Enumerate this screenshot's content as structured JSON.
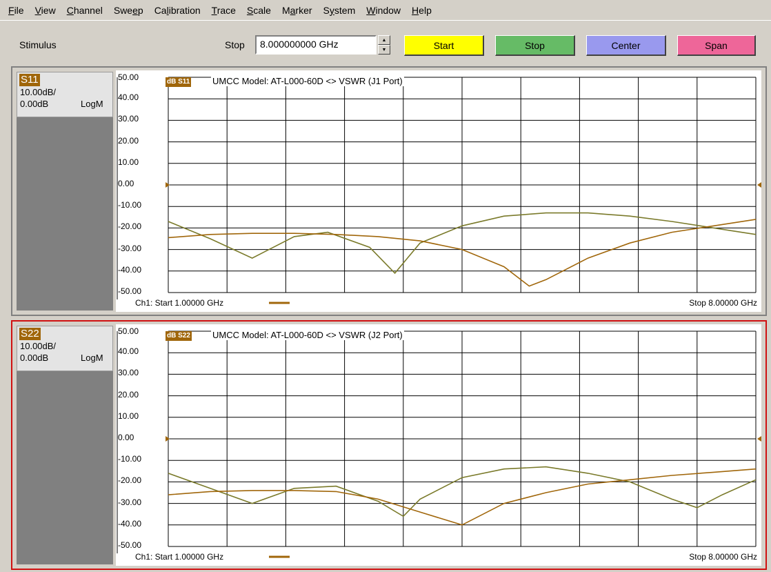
{
  "menu": [
    {
      "label": "File",
      "ul": "F",
      "rest": "ile"
    },
    {
      "label": "View",
      "ul": "V",
      "rest": "iew"
    },
    {
      "label": "Channel",
      "ul": "C",
      "rest": "hannel"
    },
    {
      "label": "Sweep",
      "pre": "Swe",
      "ul": "e",
      "rest": "p"
    },
    {
      "label": "Calibration",
      "pre": "Ca",
      "ul": "l",
      "rest": "ibration"
    },
    {
      "label": "Trace",
      "ul": "T",
      "rest": "race"
    },
    {
      "label": "Scale",
      "ul": "S",
      "rest": "cale"
    },
    {
      "label": "Marker",
      "pre": "M",
      "ul": "a",
      "rest": "rker"
    },
    {
      "label": "System",
      "pre": "S",
      "ul": "y",
      "rest": "stem"
    },
    {
      "label": "Window",
      "ul": "W",
      "rest": "indow"
    },
    {
      "label": "Help",
      "ul": "H",
      "rest": "elp"
    }
  ],
  "toolbar": {
    "stimulus_label": "Stimulus",
    "stop_label": "Stop",
    "stop_value": "8.000000000 GHz",
    "start_button": "Start",
    "stop_button": "Stop",
    "center_button": "Center",
    "span_button": "Span"
  },
  "colors": {
    "trace": "#a0660a",
    "trace_secondary": "#7a7a2a",
    "active_border": "#d01010"
  },
  "panes": [
    {
      "param": "S11",
      "scale": "10.00dB/",
      "ref": "0.00dB",
      "format": "LogM",
      "trace_tag": "dB S11",
      "title": "UMCC Model: AT-L000-60D <> VSWR (J1 Port)",
      "footer_start": "Ch1: Start  1.00000 GHz",
      "footer_stop": "Stop  8.00000 GHz",
      "active": false
    },
    {
      "param": "S22",
      "scale": "10.00dB/",
      "ref": "0.00dB",
      "format": "LogM",
      "trace_tag": "dB S22",
      "title": "UMCC Model: AT-L000-60D <> VSWR (J2 Port)",
      "footer_start": "Ch1: Start  1.00000 GHz",
      "footer_stop": "Stop  8.00000 GHz",
      "active": true
    }
  ],
  "chart_data": [
    {
      "type": "line",
      "title": "UMCC Model: AT-L000-60D <> VSWR (J1 Port)",
      "yticks": [
        "50.00",
        "40.00",
        "30.00",
        "20.00",
        "10.00",
        "0.00",
        "-10.00",
        "-20.00",
        "-30.00",
        "-40.00",
        "-50.00"
      ],
      "xlim": [
        1.0,
        8.0
      ],
      "ylim": [
        -50,
        50
      ],
      "grid": true,
      "series": [
        {
          "x": [
            1.0,
            1.5,
            2.0,
            2.5,
            2.9,
            3.4,
            3.7,
            4.0,
            4.5,
            5.0,
            5.5,
            6.0,
            6.5,
            7.0,
            7.5,
            8.0
          ],
          "y": [
            -17,
            -25,
            -34,
            -24,
            -22,
            -29,
            -41,
            -27,
            -19,
            -14.5,
            -13,
            -13,
            -14.5,
            -17,
            -20,
            -23
          ]
        },
        {
          "x": [
            1.0,
            1.5,
            2.0,
            2.5,
            3.0,
            3.5,
            4.0,
            4.5,
            5.0,
            5.3,
            5.5,
            6.0,
            6.5,
            7.0,
            7.5,
            8.0
          ],
          "y": [
            -24.5,
            -23,
            -22.5,
            -22.5,
            -23,
            -24,
            -26,
            -30,
            -38,
            -47,
            -44,
            -34,
            -27,
            -22,
            -19,
            -16
          ]
        }
      ]
    },
    {
      "type": "line",
      "title": "UMCC Model: AT-L000-60D <> VSWR (J2 Port)",
      "yticks": [
        "50.00",
        "40.00",
        "30.00",
        "20.00",
        "10.00",
        "0.00",
        "-10.00",
        "-20.00",
        "-30.00",
        "-40.00",
        "-50.00"
      ],
      "xlim": [
        1.0,
        8.0
      ],
      "ylim": [
        -50,
        50
      ],
      "grid": true,
      "series": [
        {
          "x": [
            1.0,
            1.5,
            2.0,
            2.5,
            3.0,
            3.5,
            3.8,
            4.0,
            4.5,
            5.0,
            5.5,
            6.0,
            6.5,
            7.0,
            7.3,
            7.6,
            8.0
          ],
          "y": [
            -16,
            -23,
            -30,
            -23,
            -22,
            -29,
            -36,
            -28,
            -18,
            -14,
            -13,
            -16,
            -20,
            -28,
            -32,
            -26,
            -19
          ]
        },
        {
          "x": [
            1.0,
            1.5,
            2.0,
            2.5,
            3.0,
            3.5,
            4.0,
            4.5,
            5.0,
            5.5,
            6.0,
            6.5,
            7.0,
            7.5,
            8.0
          ],
          "y": [
            -26,
            -24.5,
            -24,
            -24,
            -24.5,
            -28,
            -34,
            -40,
            -30,
            -25,
            -21,
            -19,
            -17,
            -15.5,
            -14
          ]
        }
      ]
    }
  ]
}
